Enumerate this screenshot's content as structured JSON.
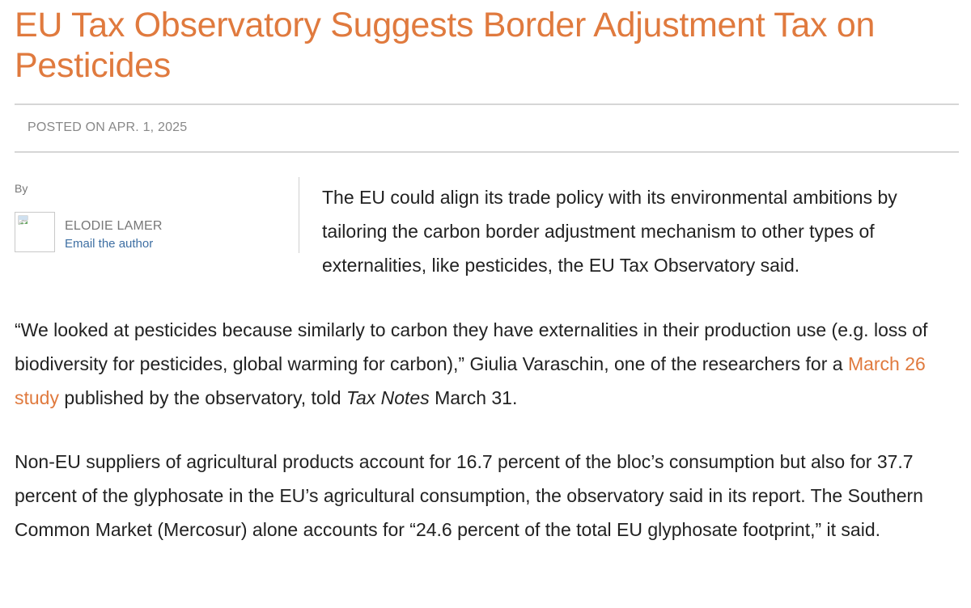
{
  "article": {
    "title": "EU Tax Observatory Suggests Border Adjustment Tax on Pesticides",
    "posted": "POSTED ON APR. 1, 2025",
    "byline": {
      "by": "By",
      "author_name": "ELODIE LAMER",
      "email_link": "Email the author",
      "avatar_icon": "broken-image-icon"
    },
    "lede": "The EU could align its trade policy with its environmental ambitions by tailoring the carbon border adjustment mechanism to other types of externalities, like pesticides, the EU Tax Observatory said.",
    "paragraph1": {
      "text_before_link": "“We looked at pesticides because similarly to carbon they have externalities in their production use (e.g. loss of biodiversity for pesticides, global warming for carbon),” Giulia Varaschin, one of the researchers for a ",
      "link_text": "March 26 study",
      "text_after_link": " published by the observatory, told ",
      "publication": "Tax Notes",
      "text_end": " March 31."
    },
    "paragraph2": "Non-EU suppliers of agricultural products account for 16.7 percent of the bloc’s consumption but also for 37.7 percent of the glyphosate in the EU’s agricultural consumption, the observatory said in its report. The Southern Common Market (Mercosur) alone accounts for “24.6 percent of the total EU glyphosate footprint,” it said."
  },
  "colors": {
    "accent": "#e07a3e",
    "link_blue": "#3e6fa3",
    "muted_text": "#888888",
    "body_text": "#222222",
    "rule": "#d6d6d6"
  }
}
